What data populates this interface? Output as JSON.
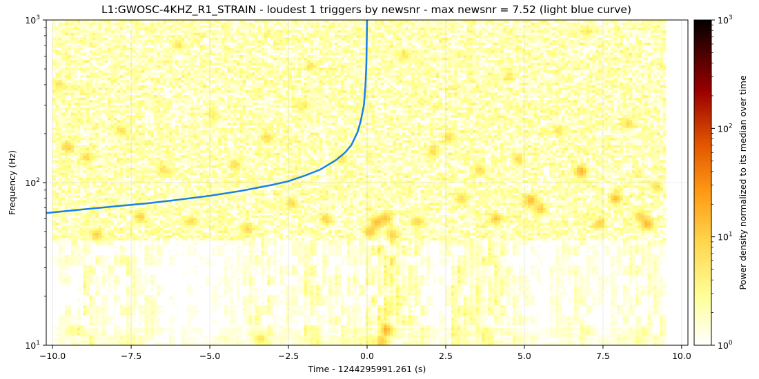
{
  "chart_data": {
    "type": "heatmap",
    "title": "L1:GWOSC-4KHZ_R1_STRAIN - loudest 1 triggers by newsnr - max newsnr = 7.52 (light blue curve)",
    "xlabel": "Time - 1244295991.261 (s)",
    "ylabel": "Frequency (Hz)",
    "xlim": [
      -10.2,
      10.2
    ],
    "ylim": [
      10,
      1000
    ],
    "yscale": "log",
    "x_ticks": [
      -10.0,
      -7.5,
      -5.0,
      -2.5,
      0.0,
      2.5,
      5.0,
      7.5,
      10.0
    ],
    "x_tick_labels": [
      "−10.0",
      "−7.5",
      "−5.0",
      "−2.5",
      "0.0",
      "2.5",
      "5.0",
      "7.5",
      "10.0"
    ],
    "y_tick_labels": [
      {
        "value": 10,
        "base": "10",
        "exp": "1"
      },
      {
        "value": 100,
        "base": "10",
        "exp": "2"
      },
      {
        "value": 1000,
        "base": "10",
        "exp": "3"
      }
    ],
    "data_extent_x": [
      -10.0,
      9.5
    ],
    "grid": true,
    "colormap": "afmhot_r",
    "colorbar": {
      "label": "Power density normalized to its median over time",
      "scale": "log",
      "range": [
        1,
        1000
      ],
      "tick_labels": [
        {
          "value": 1,
          "base": "10",
          "exp": "0"
        },
        {
          "value": 10,
          "base": "10",
          "exp": "1"
        },
        {
          "value": 100,
          "base": "10",
          "exp": "2"
        },
        {
          "value": 1000,
          "base": "10",
          "exp": "3"
        }
      ]
    },
    "trigger_curve": {
      "color": "#1a7fe6",
      "points": [
        [
          -10.2,
          65
        ],
        [
          -9.0,
          68.5
        ],
        [
          -8.0,
          71.5
        ],
        [
          -7.0,
          74.5
        ],
        [
          -6.0,
          78.5
        ],
        [
          -5.0,
          83
        ],
        [
          -4.0,
          89
        ],
        [
          -3.0,
          97
        ],
        [
          -2.5,
          102
        ],
        [
          -2.0,
          110
        ],
        [
          -1.5,
          120
        ],
        [
          -1.0,
          137
        ],
        [
          -0.7,
          153
        ],
        [
          -0.5,
          170
        ],
        [
          -0.3,
          205
        ],
        [
          -0.2,
          240
        ],
        [
          -0.1,
          300
        ],
        [
          -0.05,
          400
        ],
        [
          -0.02,
          560
        ],
        [
          0.0,
          1000
        ]
      ]
    },
    "hot_spots": [
      [
        -9.5,
        165,
        8
      ],
      [
        -8.9,
        145,
        7
      ],
      [
        -8.6,
        48,
        9
      ],
      [
        -7.8,
        210,
        6
      ],
      [
        -7.2,
        62,
        8
      ],
      [
        -6.5,
        120,
        6
      ],
      [
        -5.6,
        58,
        7
      ],
      [
        -4.9,
        260,
        5
      ],
      [
        -4.2,
        130,
        6
      ],
      [
        -3.8,
        52,
        8
      ],
      [
        -3.2,
        190,
        6
      ],
      [
        -2.4,
        75,
        7
      ],
      [
        -2.0,
        300,
        5
      ],
      [
        -1.3,
        60,
        8
      ],
      [
        -0.8,
        140,
        6
      ],
      [
        0.1,
        50,
        10
      ],
      [
        0.3,
        57,
        12
      ],
      [
        0.6,
        61,
        11
      ],
      [
        0.8,
        48,
        9
      ],
      [
        1.6,
        58,
        8
      ],
      [
        2.1,
        155,
        7
      ],
      [
        2.6,
        192,
        6
      ],
      [
        3.0,
        80,
        8
      ],
      [
        3.6,
        120,
        7
      ],
      [
        4.1,
        60,
        9
      ],
      [
        4.8,
        140,
        7
      ],
      [
        5.2,
        78,
        13
      ],
      [
        5.5,
        69,
        9
      ],
      [
        6.1,
        210,
        6
      ],
      [
        6.8,
        118,
        14
      ],
      [
        7.4,
        56,
        8
      ],
      [
        7.9,
        80,
        12
      ],
      [
        8.3,
        230,
        6
      ],
      [
        8.7,
        62,
        9
      ],
      [
        8.9,
        56,
        14
      ],
      [
        9.2,
        95,
        7
      ],
      [
        -9.8,
        400,
        5
      ],
      [
        -6.0,
        700,
        5
      ],
      [
        -1.8,
        520,
        5
      ],
      [
        1.2,
        620,
        5
      ],
      [
        4.5,
        450,
        5
      ],
      [
        7.0,
        850,
        5
      ],
      [
        0.6,
        12.5,
        12
      ],
      [
        0.5,
        10.5,
        9
      ],
      [
        -3.4,
        11,
        6
      ]
    ],
    "low_freq_activity": [
      [
        -10.0,
        1.2
      ],
      [
        -9.6,
        2.0
      ],
      [
        -9.2,
        3.0
      ],
      [
        -8.8,
        2.8
      ],
      [
        -8.4,
        1.8
      ],
      [
        -8.0,
        2.2
      ],
      [
        -7.6,
        2.6
      ],
      [
        -7.2,
        1.6
      ],
      [
        -6.8,
        2.4
      ],
      [
        -6.4,
        1.4
      ],
      [
        -6.0,
        1.3
      ],
      [
        -5.6,
        1.5
      ],
      [
        -5.2,
        1.3
      ],
      [
        -4.8,
        1.4
      ],
      [
        -4.4,
        1.6
      ],
      [
        -4.0,
        1.5
      ],
      [
        -3.6,
        2.6
      ],
      [
        -3.2,
        3.0
      ],
      [
        -2.8,
        1.6
      ],
      [
        -2.4,
        1.8
      ],
      [
        -2.0,
        2.8
      ],
      [
        -1.6,
        3.0
      ],
      [
        -1.2,
        2.0
      ],
      [
        -0.8,
        2.6
      ],
      [
        -0.4,
        2.4
      ],
      [
        0.0,
        3.0
      ],
      [
        0.4,
        4.2
      ],
      [
        0.8,
        4.4
      ],
      [
        1.2,
        3.4
      ],
      [
        1.6,
        3.2
      ],
      [
        2.0,
        1.8
      ],
      [
        2.4,
        1.4
      ],
      [
        2.8,
        3.4
      ],
      [
        3.2,
        3.0
      ],
      [
        3.6,
        3.2
      ],
      [
        4.0,
        3.4
      ],
      [
        4.4,
        3.0
      ],
      [
        4.8,
        2.0
      ],
      [
        5.2,
        1.6
      ],
      [
        5.6,
        1.3
      ],
      [
        6.0,
        1.6
      ],
      [
        6.4,
        2.0
      ],
      [
        6.8,
        2.4
      ],
      [
        7.2,
        1.7
      ],
      [
        7.6,
        1.5
      ],
      [
        8.0,
        1.8
      ],
      [
        8.4,
        2.2
      ],
      [
        8.8,
        2.6
      ],
      [
        9.2,
        2.0
      ]
    ]
  }
}
